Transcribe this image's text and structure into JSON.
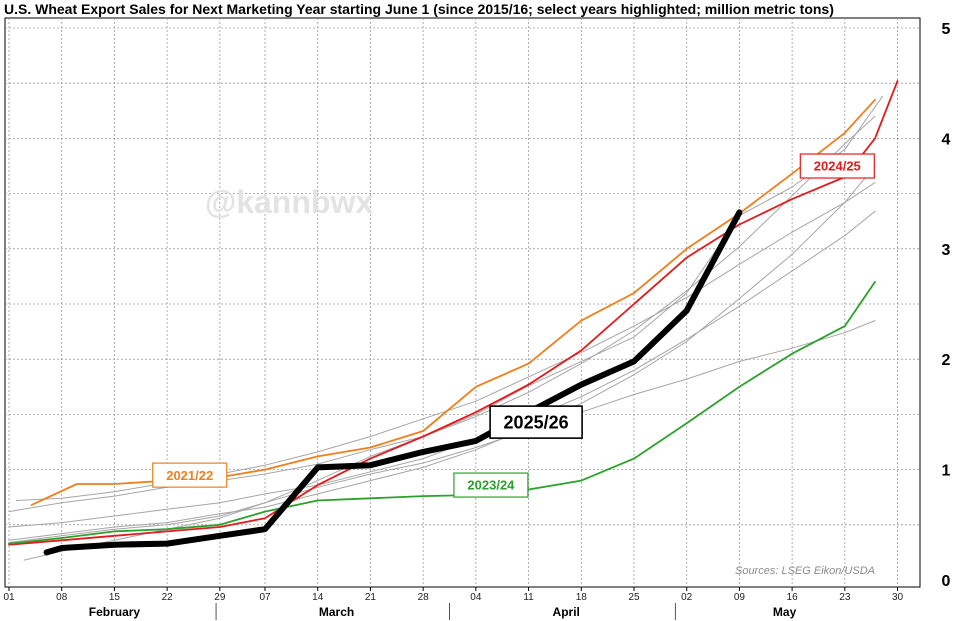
{
  "chart_data": {
    "type": "line",
    "title": "U.S. Wheat Export Sales for Next Marketing Year starting June 1 (since 2015/16; select years highlighted; million metric tons)",
    "xlabel": "",
    "ylabel": "",
    "ylim": [
      0,
      5
    ],
    "yticks": [
      0,
      1,
      2,
      3,
      4,
      5
    ],
    "y_axis_side": "right",
    "x_range_days": [
      0,
      89
    ],
    "grid": true,
    "months": [
      {
        "label": "February",
        "start": 0,
        "end": 28
      },
      {
        "label": "March",
        "start": 28,
        "end": 59
      },
      {
        "label": "April",
        "start": 59,
        "end": 89
      },
      {
        "label": "May",
        "start": 89,
        "end": 117
      }
    ],
    "x_ticks": [
      {
        "day": 0,
        "label": "01"
      },
      {
        "day": 7,
        "label": "08"
      },
      {
        "day": 14,
        "label": "15"
      },
      {
        "day": 21,
        "label": "22"
      },
      {
        "day": 28,
        "label": "29"
      },
      {
        "day": 34,
        "label": "07"
      },
      {
        "day": 41,
        "label": "14"
      },
      {
        "day": 48,
        "label": "21"
      },
      {
        "day": 55,
        "label": "28"
      },
      {
        "day": 62,
        "label": "04"
      },
      {
        "day": 69,
        "label": "11"
      },
      {
        "day": 76,
        "label": "18"
      },
      {
        "day": 83,
        "label": "25"
      },
      {
        "day": 90,
        "label": "02"
      },
      {
        "day": 97,
        "label": "09"
      },
      {
        "day": 104,
        "label": "16"
      },
      {
        "day": 111,
        "label": "23"
      },
      {
        "day": 118,
        "label": "30"
      }
    ],
    "watermark": "@kannbwx",
    "source": "Sources: LSEG Eikon/USDA",
    "series": [
      {
        "name": "other-1",
        "highlight": false,
        "color": "#a6a6a6",
        "points": [
          [
            0,
            0.36
          ],
          [
            7,
            0.42
          ],
          [
            14,
            0.48
          ],
          [
            21,
            0.52
          ],
          [
            28,
            0.6
          ],
          [
            34,
            0.66
          ],
          [
            41,
            0.78
          ],
          [
            48,
            0.9
          ],
          [
            55,
            1.02
          ],
          [
            62,
            1.18
          ],
          [
            69,
            1.38
          ],
          [
            76,
            1.6
          ],
          [
            83,
            1.86
          ],
          [
            90,
            2.16
          ],
          [
            97,
            2.55
          ],
          [
            104,
            2.95
          ],
          [
            111,
            3.42
          ],
          [
            115,
            3.75
          ]
        ]
      },
      {
        "name": "other-2",
        "highlight": false,
        "color": "#a6a6a6",
        "points": [
          [
            0,
            0.62
          ],
          [
            7,
            0.7
          ],
          [
            14,
            0.76
          ],
          [
            21,
            0.84
          ],
          [
            28,
            0.9
          ],
          [
            34,
            0.96
          ],
          [
            41,
            1.05
          ],
          [
            48,
            1.18
          ],
          [
            55,
            1.3
          ],
          [
            62,
            1.48
          ],
          [
            69,
            1.7
          ],
          [
            76,
            1.96
          ],
          [
            83,
            2.26
          ],
          [
            90,
            2.62
          ],
          [
            97,
            3.02
          ],
          [
            104,
            3.48
          ],
          [
            111,
            3.95
          ],
          [
            115,
            4.2
          ]
        ]
      },
      {
        "name": "other-3",
        "highlight": false,
        "color": "#a6a6a6",
        "points": [
          [
            0,
            0.48
          ],
          [
            7,
            0.52
          ],
          [
            14,
            0.58
          ],
          [
            21,
            0.64
          ],
          [
            28,
            0.7
          ],
          [
            34,
            0.78
          ],
          [
            41,
            0.86
          ],
          [
            48,
            0.98
          ],
          [
            55,
            1.1
          ],
          [
            62,
            1.28
          ],
          [
            69,
            1.46
          ],
          [
            76,
            1.66
          ],
          [
            83,
            1.9
          ],
          [
            90,
            2.18
          ],
          [
            97,
            2.48
          ],
          [
            104,
            2.8
          ],
          [
            111,
            3.12
          ],
          [
            115,
            3.34
          ]
        ]
      },
      {
        "name": "other-4",
        "highlight": false,
        "color": "#a6a6a6",
        "points": [
          [
            2,
            0.18
          ],
          [
            7,
            0.26
          ],
          [
            14,
            0.36
          ],
          [
            21,
            0.46
          ],
          [
            28,
            0.56
          ],
          [
            34,
            0.7
          ],
          [
            41,
            0.84
          ],
          [
            48,
            0.96
          ],
          [
            55,
            1.06
          ],
          [
            62,
            1.2
          ],
          [
            69,
            1.36
          ],
          [
            76,
            1.52
          ],
          [
            83,
            1.68
          ],
          [
            90,
            1.82
          ],
          [
            97,
            1.98
          ],
          [
            104,
            2.1
          ],
          [
            111,
            2.24
          ],
          [
            115,
            2.35
          ]
        ]
      },
      {
        "name": "other-5",
        "highlight": false,
        "color": "#a6a6a6",
        "points": [
          [
            1,
            0.72
          ],
          [
            7,
            0.74
          ],
          [
            14,
            0.8
          ],
          [
            21,
            0.88
          ],
          [
            28,
            0.96
          ],
          [
            34,
            1.04
          ],
          [
            41,
            1.16
          ],
          [
            48,
            1.3
          ],
          [
            55,
            1.46
          ],
          [
            62,
            1.62
          ],
          [
            69,
            1.84
          ],
          [
            76,
            2.06
          ],
          [
            83,
            2.3
          ],
          [
            90,
            2.56
          ],
          [
            97,
            2.86
          ],
          [
            104,
            3.15
          ],
          [
            111,
            3.42
          ],
          [
            115,
            3.6
          ]
        ]
      },
      {
        "name": "other-6",
        "highlight": false,
        "color": "#a6a6a6",
        "points": [
          [
            0,
            0.34
          ],
          [
            7,
            0.4
          ],
          [
            14,
            0.46
          ],
          [
            21,
            0.5
          ],
          [
            28,
            0.58
          ],
          [
            34,
            0.7
          ],
          [
            41,
            0.9
          ],
          [
            48,
            1.12
          ],
          [
            55,
            1.3
          ],
          [
            62,
            1.5
          ],
          [
            69,
            1.76
          ],
          [
            76,
            1.98
          ],
          [
            83,
            2.2
          ],
          [
            90,
            2.6
          ],
          [
            97,
            3.3
          ],
          [
            104,
            3.56
          ],
          [
            111,
            3.9
          ],
          [
            116,
            4.38
          ]
        ]
      },
      {
        "name": "2021/22",
        "highlight": true,
        "color": "#f07f1b",
        "label_pos": [
          24,
          0.95
        ],
        "points": [
          [
            3,
            0.68
          ],
          [
            9,
            0.87
          ],
          [
            14,
            0.87
          ],
          [
            21,
            0.9
          ],
          [
            28,
            0.93
          ],
          [
            34,
            1.0
          ],
          [
            41,
            1.12
          ],
          [
            48,
            1.2
          ],
          [
            55,
            1.35
          ],
          [
            62,
            1.75
          ],
          [
            69,
            1.96
          ],
          [
            76,
            2.35
          ],
          [
            83,
            2.6
          ],
          [
            90,
            3.0
          ],
          [
            97,
            3.32
          ],
          [
            104,
            3.68
          ],
          [
            111,
            4.05
          ],
          [
            115,
            4.35
          ]
        ]
      },
      {
        "name": "2024/25",
        "highlight": true,
        "color": "#e41a1c",
        "label_pos": [
          110,
          3.75
        ],
        "points": [
          [
            0,
            0.32
          ],
          [
            7,
            0.36
          ],
          [
            14,
            0.4
          ],
          [
            21,
            0.44
          ],
          [
            28,
            0.48
          ],
          [
            34,
            0.56
          ],
          [
            41,
            0.86
          ],
          [
            48,
            1.1
          ],
          [
            55,
            1.3
          ],
          [
            62,
            1.52
          ],
          [
            69,
            1.77
          ],
          [
            76,
            2.08
          ],
          [
            83,
            2.5
          ],
          [
            90,
            2.92
          ],
          [
            97,
            3.22
          ],
          [
            104,
            3.45
          ],
          [
            111,
            3.65
          ],
          [
            115,
            4.0
          ],
          [
            118,
            4.52
          ]
        ]
      },
      {
        "name": "2023/24",
        "highlight": true,
        "color": "#2ca02c",
        "label_pos": [
          64,
          0.86
        ],
        "points": [
          [
            0,
            0.33
          ],
          [
            7,
            0.38
          ],
          [
            14,
            0.44
          ],
          [
            21,
            0.46
          ],
          [
            28,
            0.5
          ],
          [
            34,
            0.62
          ],
          [
            41,
            0.72
          ],
          [
            48,
            0.74
          ],
          [
            55,
            0.76
          ],
          [
            62,
            0.77
          ],
          [
            69,
            0.82
          ],
          [
            76,
            0.9
          ],
          [
            83,
            1.1
          ],
          [
            90,
            1.42
          ],
          [
            97,
            1.75
          ],
          [
            104,
            2.05
          ],
          [
            111,
            2.3
          ],
          [
            115,
            2.7
          ]
        ]
      },
      {
        "name": "2025/26",
        "highlight": true,
        "color": "#000000",
        "bold": true,
        "label_pos": [
          70,
          1.43
        ],
        "points": [
          [
            5,
            0.25
          ],
          [
            7,
            0.29
          ],
          [
            14,
            0.32
          ],
          [
            21,
            0.33
          ],
          [
            28,
            0.4
          ],
          [
            34,
            0.46
          ],
          [
            41,
            1.02
          ],
          [
            48,
            1.04
          ],
          [
            55,
            1.16
          ],
          [
            62,
            1.26
          ],
          [
            69,
            1.52
          ],
          [
            76,
            1.77
          ],
          [
            83,
            1.98
          ],
          [
            90,
            2.44
          ],
          [
            97,
            3.33
          ]
        ]
      }
    ]
  }
}
